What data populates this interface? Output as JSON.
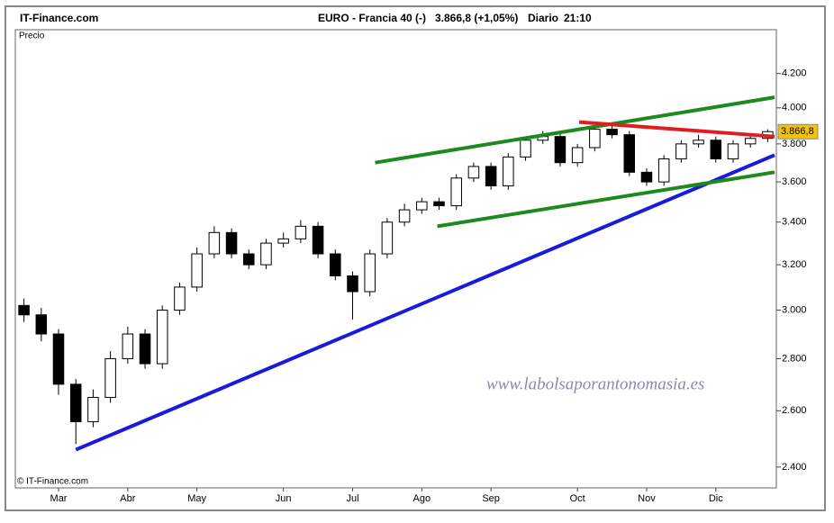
{
  "chart_data": {
    "type": "candlestick",
    "source": "IT-Finance.com",
    "instrument": "EURO - Francia 40 (-)",
    "price_text": "3.866,8 (+1,05%)",
    "period": "Diario",
    "time": "21:10",
    "panel_label": "Precio",
    "copyright": "© IT-Finance.com",
    "watermark": "www.labolsaporantonomasia.es",
    "log_scale": true,
    "grid": false,
    "categories": [
      null,
      null,
      "Mar",
      null,
      null,
      null,
      "Abr",
      null,
      null,
      null,
      "May",
      null,
      null,
      null,
      null,
      "Jun",
      null,
      null,
      null,
      "Jul",
      null,
      null,
      null,
      "Ago",
      null,
      null,
      null,
      "Sep",
      null,
      null,
      null,
      null,
      "Oct",
      null,
      null,
      null,
      "Nov",
      null,
      null,
      null,
      "Dic",
      null,
      null,
      null
    ],
    "open": [
      3020,
      2980,
      2900,
      2700,
      2560,
      2650,
      2800,
      2900,
      2780,
      3000,
      3100,
      3250,
      3350,
      3250,
      3200,
      3300,
      3320,
      3380,
      3250,
      3150,
      3080,
      3250,
      3400,
      3460,
      3500,
      3480,
      3620,
      3680,
      3580,
      3730,
      3820,
      3840,
      3700,
      3780,
      3880,
      3850,
      3650,
      3600,
      3720,
      3800,
      3820,
      3720,
      3800,
      3830
    ],
    "high": [
      3050,
      3010,
      2920,
      2720,
      2680,
      2830,
      2930,
      2920,
      3020,
      3120,
      3280,
      3380,
      3370,
      3270,
      3320,
      3350,
      3410,
      3400,
      3270,
      3170,
      3270,
      3420,
      3490,
      3520,
      3520,
      3640,
      3700,
      3700,
      3750,
      3840,
      3870,
      3860,
      3800,
      3900,
      3900,
      3870,
      3670,
      3740,
      3820,
      3850,
      3840,
      3820,
      3850,
      3880
    ],
    "low": [
      2950,
      2870,
      2660,
      2480,
      2540,
      2630,
      2780,
      2760,
      2760,
      2980,
      3080,
      3230,
      3230,
      3180,
      3180,
      3280,
      3300,
      3230,
      3130,
      2960,
      3060,
      3230,
      3380,
      3440,
      3460,
      3460,
      3600,
      3560,
      3560,
      3710,
      3800,
      3680,
      3680,
      3760,
      3830,
      3630,
      3580,
      3580,
      3700,
      3780,
      3700,
      3700,
      3780,
      3810
    ],
    "close": [
      2980,
      2900,
      2700,
      2560,
      2650,
      2800,
      2900,
      2780,
      3000,
      3100,
      3250,
      3350,
      3250,
      3200,
      3300,
      3320,
      3380,
      3250,
      3150,
      3080,
      3250,
      3400,
      3460,
      3500,
      3480,
      3620,
      3680,
      3580,
      3730,
      3820,
      3840,
      3700,
      3780,
      3880,
      3850,
      3650,
      3600,
      3720,
      3800,
      3820,
      3720,
      3800,
      3830,
      3866.8
    ],
    "last_value": 3866.8,
    "last_label": "3.866,8",
    "ylim": [
      2330,
      4470
    ],
    "yticks": [
      {
        "value": 2400,
        "label": "2.400"
      },
      {
        "value": 2600,
        "label": "2.600"
      },
      {
        "value": 2800,
        "label": "2.800"
      },
      {
        "value": 3000,
        "label": "3.000"
      },
      {
        "value": 3200,
        "label": "3.200"
      },
      {
        "value": 3400,
        "label": "3.400"
      },
      {
        "value": 3600,
        "label": "3.600"
      },
      {
        "value": 3800,
        "label": "3.800"
      },
      {
        "value": 4000,
        "label": "4.000"
      },
      {
        "value": 4200,
        "label": "4.200"
      }
    ],
    "trendlines": [
      {
        "color": "#1a1adc",
        "x": [
          3,
          43.9
        ],
        "values": [
          2460,
          3740
        ]
      },
      {
        "color": "#1e8a1e",
        "x": [
          20.3,
          43.9
        ],
        "values": [
          3700,
          4060
        ]
      },
      {
        "color": "#1e8a1e",
        "x": [
          23.9,
          43.9
        ],
        "values": [
          3380,
          3650
        ]
      },
      {
        "color": "#e01e1e",
        "x": [
          32.1,
          43.9
        ],
        "values": [
          3920,
          3840
        ]
      }
    ]
  }
}
